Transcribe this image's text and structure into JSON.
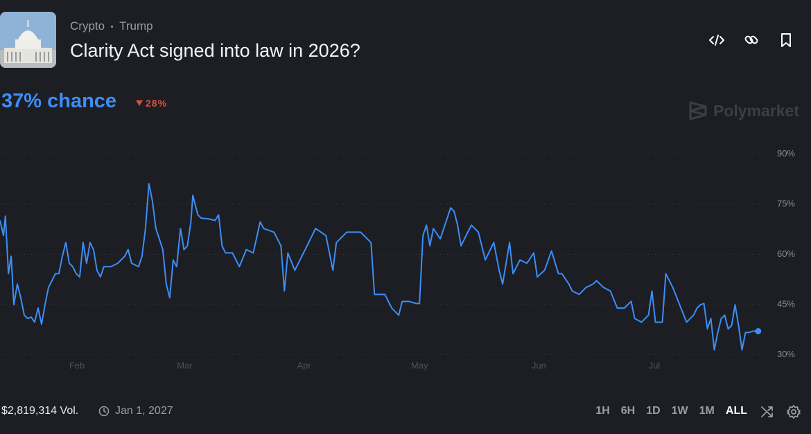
{
  "header": {
    "breadcrumbs": [
      "Crypto",
      "Trump"
    ],
    "title": "Clarity Act signed into law in 2026?"
  },
  "chance": {
    "label": "37% chance",
    "change": "28%"
  },
  "brand": "Polymarket",
  "chart_data": {
    "type": "line",
    "color": "#3d8ef7",
    "grid": true,
    "x": [
      11.0,
      11.9,
      12.4,
      13.2,
      13.9,
      14.6,
      15.5,
      16.4,
      17.3,
      18.2,
      19.1,
      20.0,
      20.9,
      21.8,
      22.7,
      23.6,
      24.5,
      25.4,
      26.3,
      27.2,
      28.1,
      29.0,
      29.9,
      30.8,
      31.7,
      32.6,
      33.5,
      34.4,
      35.3,
      36.2,
      37.1,
      38.0,
      39.8,
      41.6,
      43.4,
      44.3,
      45.2,
      47.0,
      47.9,
      48.8,
      49.7,
      50.6,
      51.5,
      52.4,
      53.3,
      54.2,
      55.1,
      56.0,
      56.9,
      57.9,
      58.8,
      59.7,
      60.6,
      61.1,
      62.4,
      63.3,
      65.1,
      66.9,
      67.8,
      68.7,
      69.6,
      71.4,
      73.2,
      75.0,
      76.8,
      78.6,
      79.5,
      82.2,
      84.0,
      84.9,
      85.8,
      87.6,
      90.3,
      93.0,
      95.7,
      97.5,
      98.4,
      101.1,
      104.7,
      107.4,
      108.3,
      111.0,
      112.8,
      114.6,
      115.5,
      117.3,
      119.1,
      120.0,
      120.9,
      121.8,
      122.7,
      123.6,
      125.4,
      127.2,
      128.1,
      129.0,
      129.9,
      130.8,
      132.1,
      133.5,
      135.3,
      137.1,
      139.3,
      140.7,
      141.6,
      142.5,
      143.4,
      144.3,
      146.1,
      147.9,
      149.7,
      150.6,
      152.5,
      154.3,
      156.1,
      157.0,
      158.8,
      159.7,
      161.5,
      163.3,
      165.1,
      166.0,
      167.8,
      169.6,
      171.4,
      173.2,
      175.0,
      175.9,
      177.7,
      179.5,
      180.4,
      181.3,
      183.1,
      184.0,
      185.8,
      187.6,
      189.4,
      191.2,
      192.1,
      193.0,
      193.9,
      194.8,
      195.7,
      196.6,
      197.5,
      198.4,
      199.3,
      200.2,
      201.1,
      202.0,
      202.9,
      203.8,
      204.7,
      205.6,
      206.5,
      208.0
    ],
    "values": [
      70.1,
      65.6,
      71.4,
      54.2,
      59.4,
      44.9,
      51.1,
      47.0,
      41.8,
      40.8,
      41.2,
      39.7,
      43.9,
      39.1,
      44.9,
      50.1,
      52.1,
      54.2,
      54.2,
      59.4,
      63.5,
      57.3,
      56.3,
      54.2,
      53.2,
      63.5,
      57.3,
      63.5,
      61.4,
      55.2,
      53.2,
      56.3,
      56.3,
      57.3,
      59.4,
      61.4,
      57.3,
      56.3,
      59.4,
      67.7,
      81.1,
      75.9,
      67.7,
      64.6,
      61.4,
      51.1,
      47.0,
      58.3,
      56.3,
      67.7,
      61.4,
      62.5,
      69.7,
      77.6,
      71.8,
      70.8,
      70.6,
      70.1,
      71.8,
      62.5,
      60.4,
      60.4,
      56.3,
      61.4,
      60.4,
      69.7,
      67.7,
      66.6,
      62.5,
      49.0,
      60.4,
      55.2,
      61.4,
      67.7,
      65.6,
      55.2,
      63.5,
      66.6,
      66.6,
      63.5,
      48.0,
      48.0,
      43.9,
      41.8,
      45.9,
      45.9,
      45.3,
      45.3,
      65.6,
      68.7,
      62.5,
      67.7,
      64.6,
      70.8,
      73.9,
      72.8,
      68.7,
      62.5,
      65.6,
      68.7,
      66.6,
      58.3,
      63.5,
      55.2,
      51.1,
      57.3,
      63.5,
      54.2,
      58.3,
      57.3,
      60.4,
      53.2,
      55.2,
      61.0,
      54.2,
      54.2,
      51.1,
      49.0,
      48.0,
      50.1,
      51.1,
      52.1,
      50.1,
      49.0,
      43.9,
      43.9,
      45.9,
      40.8,
      39.7,
      41.8,
      49.0,
      39.7,
      39.7,
      54.2,
      50.1,
      44.9,
      39.7,
      41.8,
      43.9,
      44.9,
      45.3,
      37.7,
      40.8,
      31.4,
      36.6,
      40.8,
      41.8,
      37.7,
      38.7,
      44.9,
      38.7,
      31.4,
      36.6,
      36.6,
      37.0,
      37.0
    ],
    "xlim": [
      11,
      212
    ],
    "ylim": [
      28,
      94
    ],
    "xticks": [
      {
        "value": 31,
        "label": "Feb"
      },
      {
        "value": 59,
        "label": "Mar"
      },
      {
        "value": 90,
        "label": "Apr"
      },
      {
        "value": 120,
        "label": "May"
      },
      {
        "value": 151,
        "label": "Jun"
      },
      {
        "value": 181,
        "label": "Jul"
      }
    ],
    "yticks": [
      {
        "value": 30,
        "label": "30%"
      },
      {
        "value": 45,
        "label": "45%"
      },
      {
        "value": 60,
        "label": "60%"
      },
      {
        "value": 75,
        "label": "75%"
      },
      {
        "value": 90,
        "label": "90%"
      }
    ]
  },
  "footer": {
    "volume": "$2,819,314 Vol.",
    "end_date": "Jan 1, 2027",
    "ranges": [
      "1H",
      "6H",
      "1D",
      "1W",
      "1M",
      "ALL"
    ]
  }
}
